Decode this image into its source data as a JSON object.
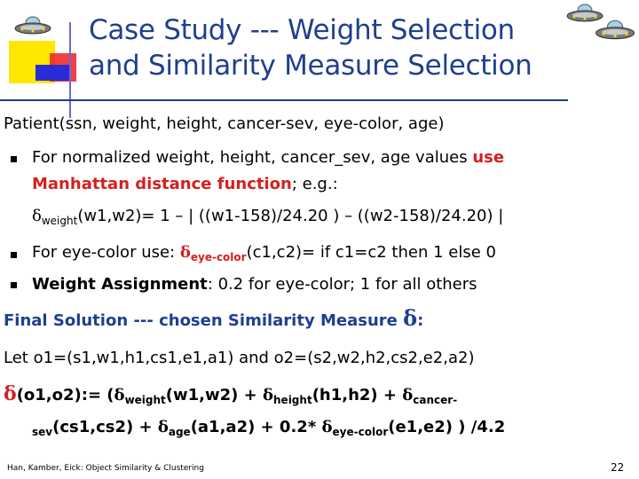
{
  "slide": {
    "title_line1": "Case Study --- Weight Selection",
    "title_line2": "and Similarity Measure Selection",
    "patient": "Patient(ssn, weight, height, cancer-sev, eye-color, age)",
    "bullet1_a": "For normalized weight, height, cancer_sev, age values ",
    "bullet1_use": "use",
    "bullet1_b_red": "Manhattan distance function",
    "bullet1_c": "; e.g.:",
    "delta_weight_sub": "weight",
    "delta_weight_args": "(w1,w2)= 1 – | ((w1-158)/24.20 ) – ((w2-158)/24.20) |",
    "bullet2_a": "For eye-color use: ",
    "bullet2_sub": "eye-color",
    "bullet2_b": "(c1,c2)= if c1=c2 then 1 else 0",
    "bullet3_bold": "Weight Assignment",
    "bullet3_rest": ": 0.2 for eye-color; 1 for all others",
    "final_solution": "Final Solution --- chosen Similarity Measure ",
    "final_delta": "δ",
    "final_colon": ":",
    "let_line": "Let o1=(s1,w1,h1,cs1,e1,a1) and o2=(s2,w2,h2,cs2,e2,a2)",
    "f1_a": "(o1,o2):= (",
    "f1_w_sub": "weight",
    "f1_b": "(w1,w2) + ",
    "f1_h_sub": "height",
    "f1_c": "(h1,h2) + ",
    "f1_c_sub": "cancer-",
    "f2_sub": "sev",
    "f2_a": "(cs1,cs2) + ",
    "f2_age_sub": "age",
    "f2_b": "(a1,a2) + 0.2* ",
    "f2_eye_sub": "eye-color",
    "f2_c": "(e1,e2) ) /4.2",
    "delta": "δ",
    "footer": "Han, Kamber, Eick: Object Similarity & Clustering",
    "page_number": "22"
  },
  "colors": {
    "title": "#1f3f8f",
    "accent_red": "#d42020",
    "accent_blue": "#1f3f8f"
  },
  "icons": [
    "ufo-icon",
    "ufo-icon",
    "ufo-icon"
  ]
}
